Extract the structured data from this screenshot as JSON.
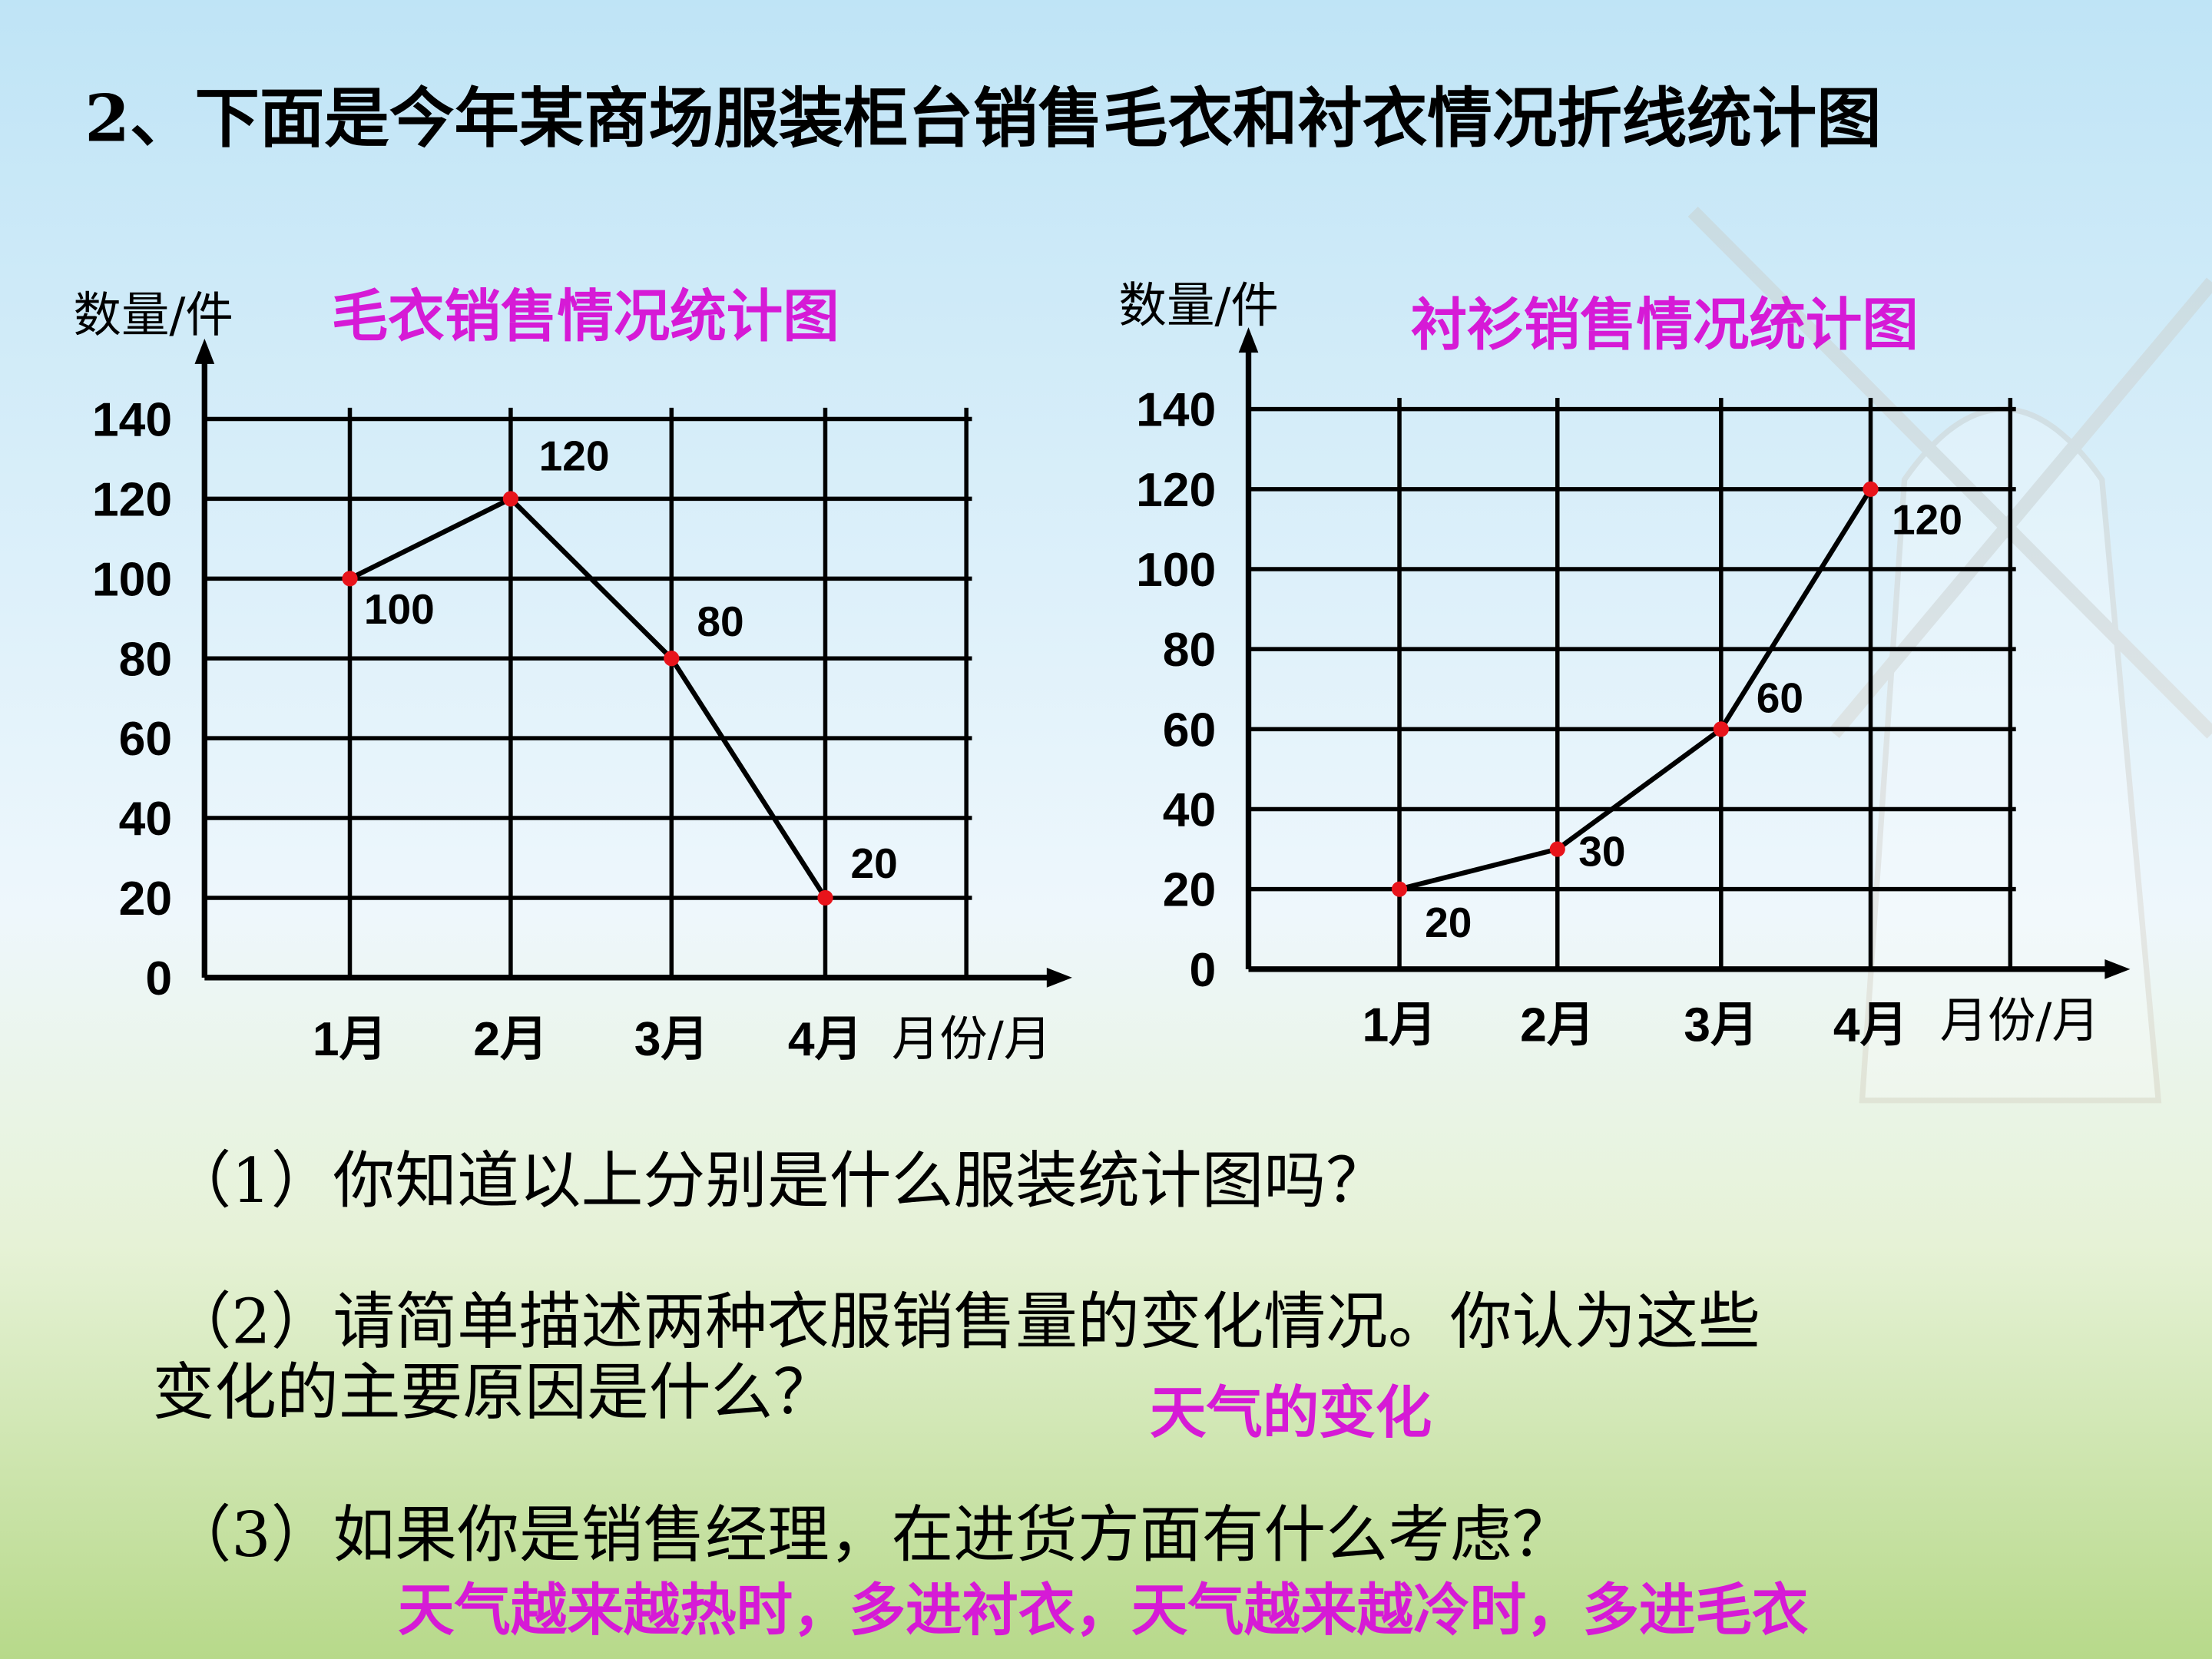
{
  "title": "2、下面是今年某商场服装柜台销售毛衣和衬衣情况折线统计图",
  "chart_data": [
    {
      "type": "line",
      "title": "毛衣销售情况统计图",
      "y_label": "数量/件",
      "x_label": "月份/月",
      "categories": [
        "1月",
        "2月",
        "3月",
        "4月"
      ],
      "values": [
        100,
        120,
        80,
        20
      ],
      "color": "#000000",
      "marker_color": "#e8141b",
      "ylim": [
        0,
        140
      ],
      "yticks": [
        0,
        20,
        40,
        60,
        80,
        100,
        120,
        140
      ],
      "grid": true
    },
    {
      "type": "line",
      "title": "衬衫销售情况统计图",
      "y_label": "数量/件",
      "x_label": "月份/月",
      "categories": [
        "1月",
        "2月",
        "3月",
        "4月"
      ],
      "values": [
        20,
        30,
        60,
        120
      ],
      "color": "#000000",
      "marker_color": "#e8141b",
      "ylim": [
        0,
        140
      ],
      "yticks": [
        0,
        20,
        40,
        60,
        80,
        100,
        120,
        140
      ],
      "grid": true
    }
  ],
  "questions": [
    [
      "（1）你知道以上分别是什么服装统计图吗？"
    ],
    [
      "（2）请简单描述两种衣服销售量的变化情况。你认为这些",
      "变化的主要原因是什么？"
    ],
    [
      "（3）如果你是销售经理，在进货方面有什么考虑？"
    ]
  ],
  "answers": [
    "天气的变化",
    "天气越来越热时，多进衬衣，天气越来越冷时，多进毛衣"
  ]
}
